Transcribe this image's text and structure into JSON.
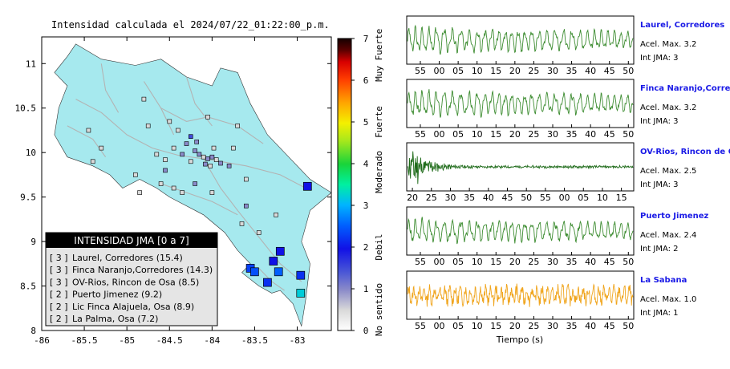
{
  "map": {
    "title": "Intensidad calculada el 2024/07/22_01:22:00_p.m.",
    "x_ticks": [
      "-86",
      "-85.5",
      "-85",
      "-84.5",
      "-84",
      "-83.5",
      "-83"
    ],
    "y_ticks": [
      "11",
      "10.5",
      "10",
      "9.5",
      "9",
      "8.5",
      "8"
    ],
    "xlim": [
      -86,
      -82.6
    ],
    "ylim": [
      8,
      11.3
    ],
    "colors": {
      "land": "#a6e9ee",
      "sea": "#ffffff",
      "roads": "#b3b3b3",
      "border": "#333333"
    },
    "stations_small": [
      {
        "lon": -84.2,
        "lat": 10.02,
        "level": 1
      },
      {
        "lon": -84.15,
        "lat": 9.98,
        "level": 1
      },
      {
        "lon": -84.1,
        "lat": 9.95,
        "level": 0.5
      },
      {
        "lon": -84.05,
        "lat": 9.93,
        "level": 1
      },
      {
        "lon": -84.0,
        "lat": 9.95,
        "level": 1
      },
      {
        "lon": -83.95,
        "lat": 9.92,
        "level": 0.5
      },
      {
        "lon": -83.9,
        "lat": 9.88,
        "level": 1
      },
      {
        "lon": -84.08,
        "lat": 9.87,
        "level": 1
      },
      {
        "lon": -84.02,
        "lat": 9.85,
        "level": 0.5
      },
      {
        "lon": -84.25,
        "lat": 9.9,
        "level": 0.5
      },
      {
        "lon": -84.35,
        "lat": 9.98,
        "level": 1
      },
      {
        "lon": -84.45,
        "lat": 10.05,
        "level": 0.5
      },
      {
        "lon": -84.55,
        "lat": 9.92,
        "level": 0.5
      },
      {
        "lon": -84.65,
        "lat": 9.98,
        "level": 0.5
      },
      {
        "lon": -84.3,
        "lat": 10.1,
        "level": 1
      },
      {
        "lon": -84.4,
        "lat": 10.25,
        "level": 0.5
      },
      {
        "lon": -84.5,
        "lat": 10.35,
        "level": 0.5
      },
      {
        "lon": -84.75,
        "lat": 10.3,
        "level": 0.5
      },
      {
        "lon": -84.8,
        "lat": 10.6,
        "level": 0.5
      },
      {
        "lon": -84.05,
        "lat": 10.4,
        "level": 0.5
      },
      {
        "lon": -83.7,
        "lat": 10.3,
        "level": 0.5
      },
      {
        "lon": -83.75,
        "lat": 10.05,
        "level": 0.5
      },
      {
        "lon": -83.8,
        "lat": 9.85,
        "level": 1
      },
      {
        "lon": -83.6,
        "lat": 9.7,
        "level": 0.5
      },
      {
        "lon": -84.0,
        "lat": 9.55,
        "level": 0.5
      },
      {
        "lon": -84.2,
        "lat": 9.65,
        "level": 1
      },
      {
        "lon": -84.35,
        "lat": 9.55,
        "level": 0.5
      },
      {
        "lon": -84.45,
        "lat": 9.6,
        "level": 0.5
      },
      {
        "lon": -84.6,
        "lat": 9.65,
        "level": 0.5
      },
      {
        "lon": -85.3,
        "lat": 10.05,
        "level": 0.5
      },
      {
        "lon": -85.4,
        "lat": 9.9,
        "level": 0.5
      },
      {
        "lon": -85.45,
        "lat": 10.25,
        "level": 0.5
      },
      {
        "lon": -84.9,
        "lat": 9.75,
        "level": 0.5
      },
      {
        "lon": -84.85,
        "lat": 9.55,
        "level": 0.5
      },
      {
        "lon": -83.6,
        "lat": 9.4,
        "level": 1
      },
      {
        "lon": -83.25,
        "lat": 9.3,
        "level": 0.5
      },
      {
        "lon": -83.45,
        "lat": 9.1,
        "level": 0.5
      },
      {
        "lon": -83.65,
        "lat": 9.2,
        "level": 0.5
      },
      {
        "lon": -84.55,
        "lat": 9.8,
        "level": 1
      },
      {
        "lon": -84.25,
        "lat": 10.18,
        "level": 1.5
      },
      {
        "lon": -84.18,
        "lat": 10.12,
        "level": 1
      },
      {
        "lon": -83.98,
        "lat": 10.05,
        "level": 0.5
      }
    ],
    "stations_large": [
      {
        "lon": -82.88,
        "lat": 9.62,
        "level": 2
      },
      {
        "lon": -83.2,
        "lat": 8.89,
        "level": 2
      },
      {
        "lon": -83.28,
        "lat": 8.78,
        "level": 2
      },
      {
        "lon": -83.55,
        "lat": 8.7,
        "level": 2.3
      },
      {
        "lon": -83.5,
        "lat": 8.66,
        "level": 2.4
      },
      {
        "lon": -83.22,
        "lat": 8.66,
        "level": 2.5
      },
      {
        "lon": -83.35,
        "lat": 8.54,
        "level": 2.2
      },
      {
        "lon": -82.96,
        "lat": 8.62,
        "level": 2.2
      },
      {
        "lon": -82.96,
        "lat": 8.42,
        "level": 3.2
      }
    ]
  },
  "legend": {
    "header": "INTENSIDAD JMA [0 a 7]",
    "items": [
      {
        "intensity": "[ 3 ]",
        "label": "Laurel, Corredores (15.4)"
      },
      {
        "intensity": "[ 3 ]",
        "label": "Finca Naranjo,Corredores (14.3)"
      },
      {
        "intensity": "[ 3 ]",
        "label": "OV-Rios, Rincon de Osa (8.5)"
      },
      {
        "intensity": "[ 2 ]",
        "label": "Puerto Jimenez (9.2)"
      },
      {
        "intensity": "[ 2 ]",
        "label": "Lic Finca Alajuela, Osa (8.9)"
      },
      {
        "intensity": "[ 2 ]",
        "label": "La Palma, Osa (7.2)"
      }
    ]
  },
  "colorbar": {
    "ticks": [
      "0",
      "1",
      "2",
      "3",
      "4",
      "5",
      "6",
      "7"
    ],
    "categories": [
      "No sentido",
      "Debil",
      "Moderado",
      "Fuerte",
      "Muy Fuerte"
    ],
    "category_levels": [
      0.5,
      2,
      3.8,
      5,
      6.6
    ],
    "range": [
      0,
      7
    ]
  },
  "chart_data": {
    "type": "line",
    "xlabel": "Tiempo (s)",
    "waveforms": [
      {
        "name": "Laurel, Corredores",
        "acel_label": "Acel. Max. 3.2",
        "int_label": "Int JMA: 3",
        "color": "#3e8d32",
        "tick_labels": [
          "55",
          "00",
          "05",
          "10",
          "15",
          "20",
          "25",
          "30",
          "35",
          "40",
          "45",
          "50"
        ],
        "first_tick": 0.06,
        "spacing": 0.0833,
        "style": "surface",
        "amp": 0.85,
        "seed": 3
      },
      {
        "name": "Finca Naranjo,Corredores",
        "acel_label": "Acel. Max. 3.2",
        "int_label": "Int JMA: 3",
        "color": "#3e8d32",
        "tick_labels": [
          "55",
          "00",
          "05",
          "10",
          "15",
          "20",
          "25",
          "30",
          "35",
          "40",
          "45",
          "50"
        ],
        "first_tick": 0.06,
        "spacing": 0.0833,
        "style": "surface",
        "amp": 0.85,
        "seed": 7
      },
      {
        "name": "OV-Rios, Rincon de Osa",
        "acel_label": "Acel. Max. 2.5",
        "int_label": "Int JMA: 3",
        "color": "#1f6b1a",
        "tick_labels": [
          "20",
          "25",
          "30",
          "35",
          "40",
          "45",
          "50",
          "55",
          "00",
          "05",
          "10",
          "15"
        ],
        "first_tick": 0.025,
        "spacing": 0.0837,
        "style": "burst",
        "amp": 0.95,
        "seed": 11
      },
      {
        "name": "Puerto Jimenez",
        "acel_label": "Acel. Max. 2.4",
        "int_label": "Int JMA: 2",
        "color": "#3e8d32",
        "tick_labels": [
          "55",
          "00",
          "05",
          "10",
          "15",
          "20",
          "25",
          "30",
          "35",
          "40",
          "45",
          "50"
        ],
        "first_tick": 0.06,
        "spacing": 0.0833,
        "style": "surface",
        "amp": 0.8,
        "seed": 5
      },
      {
        "name": "La Sabana",
        "acel_label": "Acel. Max. 1.0",
        "int_label": "Int JMA: 1",
        "color": "#f0a51d",
        "tick_labels": [
          "55",
          "00",
          "05",
          "10",
          "15",
          "20",
          "25",
          "30",
          "35",
          "40",
          "45",
          "50"
        ],
        "first_tick": 0.06,
        "spacing": 0.0833,
        "style": "noise",
        "amp": 0.8,
        "seed": 13
      }
    ]
  }
}
